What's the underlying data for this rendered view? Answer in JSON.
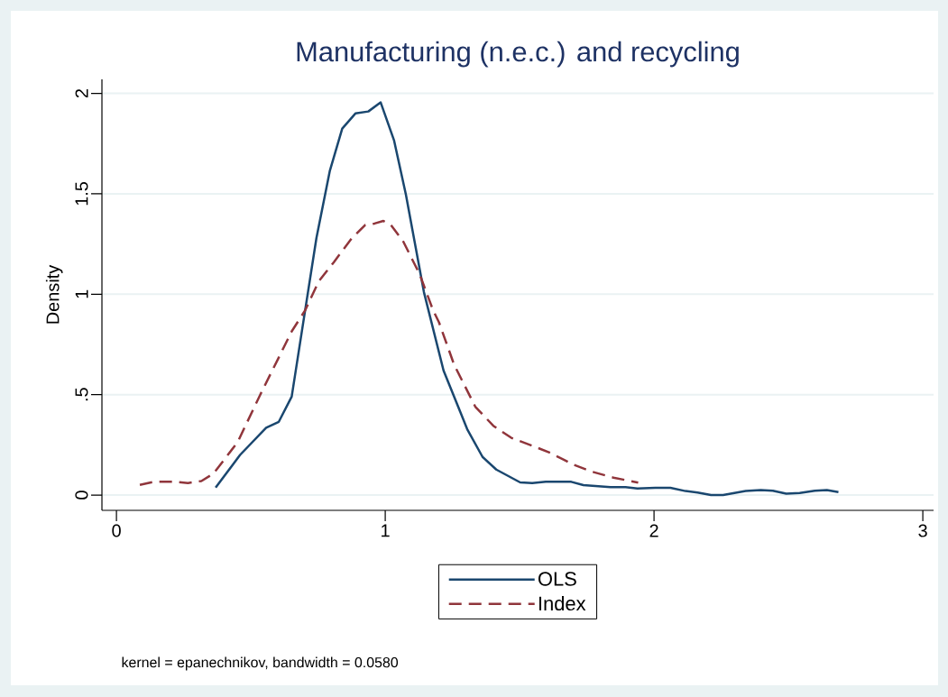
{
  "chart_data": {
    "type": "line",
    "title": "Manufacturing (n.e.c.) and recycling",
    "ylabel": "Density",
    "annotations": [
      "kernel = epanechnikov, bandwidth = 0.0580"
    ],
    "series": [
      {
        "name": "OLS",
        "color": "#1a476f",
        "line_style": "solid",
        "x": [
          0.369,
          0.46,
          0.557,
          0.604,
          0.652,
          0.702,
          0.744,
          0.794,
          0.84,
          0.889,
          0.937,
          0.983,
          1.033,
          1.077,
          1.144,
          1.217,
          1.306,
          1.362,
          1.413,
          1.502,
          1.547,
          1.597,
          1.692,
          1.737,
          1.838,
          1.894,
          1.938,
          2.005,
          2.061,
          2.117,
          2.162,
          2.212,
          2.257,
          2.341,
          2.397,
          2.442,
          2.492,
          2.542,
          2.598,
          2.643,
          2.686
        ],
        "values": [
          0.037,
          0.2,
          0.335,
          0.365,
          0.49,
          0.92,
          1.28,
          1.615,
          1.825,
          1.9,
          1.91,
          1.955,
          1.765,
          1.495,
          1.01,
          0.62,
          0.325,
          0.19,
          0.127,
          0.063,
          0.06,
          0.066,
          0.066,
          0.05,
          0.04,
          0.04,
          0.033,
          0.036,
          0.036,
          0.02,
          0.013,
          0.0,
          0.0,
          0.02,
          0.025,
          0.022,
          0.007,
          0.01,
          0.022,
          0.025,
          0.015
        ]
      },
      {
        "name": "Index",
        "color": "#90353b",
        "line_style": "dashed",
        "x": [
          0.087,
          0.138,
          0.216,
          0.266,
          0.316,
          0.361,
          0.451,
          0.535,
          0.602,
          0.652,
          0.702,
          0.753,
          0.809,
          0.876,
          0.926,
          0.96,
          0.993,
          1.021,
          1.066,
          1.128,
          1.178,
          1.2,
          1.256,
          1.335,
          1.402,
          1.469,
          1.558,
          1.614,
          1.703,
          1.77,
          1.849,
          1.941
        ],
        "values": [
          0.051,
          0.066,
          0.066,
          0.06,
          0.07,
          0.107,
          0.264,
          0.5,
          0.68,
          0.815,
          0.92,
          1.065,
          1.16,
          1.28,
          1.345,
          1.352,
          1.365,
          1.345,
          1.265,
          1.1,
          0.92,
          0.86,
          0.65,
          0.44,
          0.345,
          0.285,
          0.24,
          0.21,
          0.15,
          0.116,
          0.087,
          0.062
        ]
      }
    ],
    "xlim": [
      -0.054,
      3.04
    ],
    "ylim": [
      -0.076,
      2.07
    ],
    "xticks": [
      0,
      1,
      2,
      3
    ],
    "yticks": [
      0,
      {
        "value": 0.5,
        "label": ".5"
      },
      1,
      1.5,
      2
    ],
    "grid": "y",
    "legend": "bottom",
    "marker": "none"
  }
}
